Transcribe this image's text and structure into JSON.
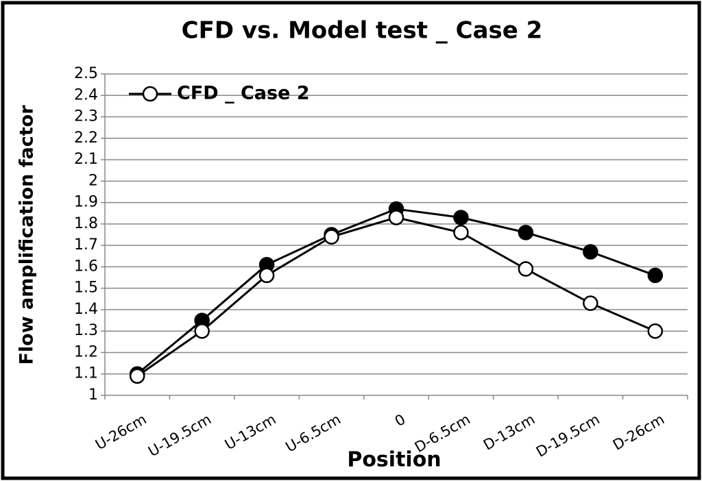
{
  "chart_data": {
    "type": "line",
    "title": "CFD vs. Model test _ Case 2",
    "xlabel": "Position",
    "ylabel": "Flow amplification factor",
    "categories": [
      "U-26cm",
      "U-19.5cm",
      "U-13cm",
      "U-6.5cm",
      "0",
      "D-6.5cm",
      "D-13cm",
      "D-19.5cm",
      "D-26cm"
    ],
    "series": [
      {
        "name": "CFD _ Case 2",
        "color": "#000000",
        "marker": "open",
        "values": [
          1.09,
          1.3,
          1.56,
          1.74,
          1.83,
          1.76,
          1.59,
          1.43,
          1.3
        ]
      },
      {
        "color": "#000000",
        "marker": "filled",
        "values": [
          1.1,
          1.35,
          1.61,
          1.75,
          1.87,
          1.83,
          1.76,
          1.67,
          1.56
        ]
      }
    ],
    "ylim": [
      1,
      2.5
    ],
    "yticks": [
      1,
      1.1,
      1.2,
      1.3,
      1.4,
      1.5,
      1.6,
      1.7,
      1.8,
      1.9,
      2,
      2.1,
      2.2,
      2.3,
      2.4,
      2.5
    ],
    "grid": true,
    "legend": "top-left"
  }
}
